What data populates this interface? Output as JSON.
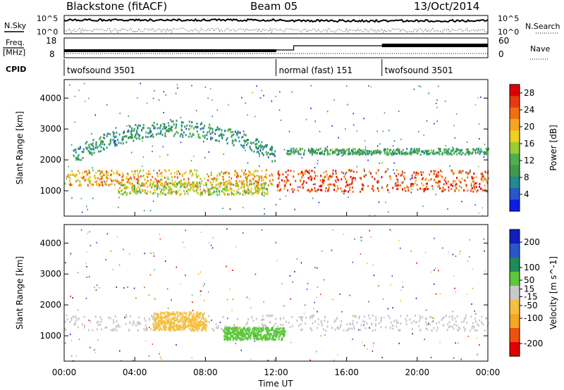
{
  "header": {
    "radar": "Blackstone (fitACF)",
    "beam": "Beam 05",
    "date": "13/Oct/2014"
  },
  "side_labels": {
    "nsky": "N.Sky",
    "nsearch": "N.Search",
    "freq_line1": "Freq.",
    "freq_line2": "[MHz]",
    "nave": "Nave",
    "cpid": "CPID"
  },
  "noise_axis": {
    "left_ticks": [
      "10^5",
      "10^0"
    ],
    "right_ticks": [
      "10^5",
      "10^0"
    ]
  },
  "freq_axis": {
    "left_ticks": [
      "18",
      "8"
    ],
    "right_ticks": [
      "60",
      "0"
    ]
  },
  "cpid_segments": [
    {
      "label": "twofsound 3501",
      "start_hour": 0,
      "end_hour": 12.0
    },
    {
      "label": "normal (fast) 151",
      "start_hour": 12.0,
      "end_hour": 18.0
    },
    {
      "label": "twofsound 3501",
      "start_hour": 18.0,
      "end_hour": 24.0
    }
  ],
  "chart_data": [
    {
      "type": "heatmap",
      "name": "power",
      "ylabel": "Slant Range [km]",
      "ylim": [
        180,
        4600
      ],
      "yticks": [
        "1000",
        "2000",
        "3000",
        "4000"
      ],
      "ytick_values": [
        1000,
        2000,
        3000,
        4000
      ],
      "xlim_hours": [
        0,
        24
      ],
      "colorbar": {
        "label": "Power [dB]",
        "range": [
          0,
          30
        ],
        "ticks": [
          "4",
          "8",
          "12",
          "16",
          "20",
          "24",
          "28"
        ],
        "tick_values": [
          4,
          8,
          12,
          16,
          20,
          24,
          28
        ],
        "colors": [
          "#0a1ee6",
          "#2a56c8",
          "#1f8a8f",
          "#3e9a4a",
          "#4caf50",
          "#9acd32",
          "#f0d020",
          "#f5a623",
          "#f07010",
          "#e83a10",
          "#e00000"
        ]
      },
      "features": [
        {
          "desc": "main band",
          "hours": [
            0,
            11.8
          ],
          "range_km": [
            1200,
            1700
          ],
          "power_db": [
            14,
            26
          ]
        },
        {
          "desc": "arc",
          "hours": [
            0.5,
            12
          ],
          "range_km": [
            1800,
            3600
          ],
          "power_db": [
            5,
            12
          ]
        },
        {
          "desc": "lower band",
          "hours": [
            3,
            11.5
          ],
          "range_km": [
            900,
            1300
          ],
          "power_db": [
            10,
            22
          ]
        },
        {
          "desc": "post-12UT band",
          "hours": [
            12,
            24
          ],
          "range_km": [
            1000,
            1700
          ],
          "power_db": [
            20,
            30
          ]
        },
        {
          "desc": "upper weak band",
          "hours": [
            12.5,
            24
          ],
          "range_km": [
            2200,
            2400
          ],
          "power_db": [
            6,
            14
          ]
        }
      ]
    },
    {
      "type": "heatmap",
      "name": "velocity",
      "ylabel": "Slant Range [km]",
      "ylim": [
        180,
        4600
      ],
      "yticks": [
        "1000",
        "2000",
        "3000",
        "4000"
      ],
      "ytick_values": [
        1000,
        2000,
        3000,
        4000
      ],
      "xlim_hours": [
        0,
        24
      ],
      "xlabel": "Time UT",
      "xticks": [
        "00:00",
        "04:00",
        "08:00",
        "12:00",
        "16:00",
        "20:00",
        "00:00"
      ],
      "xtick_hours": [
        0,
        4,
        8,
        12,
        16,
        20,
        24
      ],
      "colorbar": {
        "label": "Velocity [m s^-1]",
        "range": [
          -250,
          250
        ],
        "ticks": [
          "200",
          "100",
          "50",
          "15",
          "-15",
          "-50",
          "-100",
          "-200"
        ],
        "tick_values": [
          200,
          100,
          50,
          15,
          -15,
          -50,
          -100,
          -200
        ],
        "colors": [
          "#e00000",
          "#f05010",
          "#f5a623",
          "#f5c040",
          "#c8c8c8",
          "#5cc83c",
          "#1f8a5a",
          "#2a56c8",
          "#1020c0"
        ]
      },
      "features": [
        {
          "desc": "ground scatter band",
          "hours": [
            0,
            24
          ],
          "range_km": [
            1200,
            1700
          ],
          "velocity": [
            -15,
            15
          ]
        },
        {
          "desc": "orange patch",
          "hours": [
            5,
            8
          ],
          "range_km": [
            1200,
            1800
          ],
          "velocity": [
            -70,
            -30
          ]
        },
        {
          "desc": "green band",
          "hours": [
            9,
            12.5
          ],
          "range_km": [
            900,
            1300
          ],
          "velocity": [
            30,
            70
          ]
        }
      ]
    }
  ]
}
